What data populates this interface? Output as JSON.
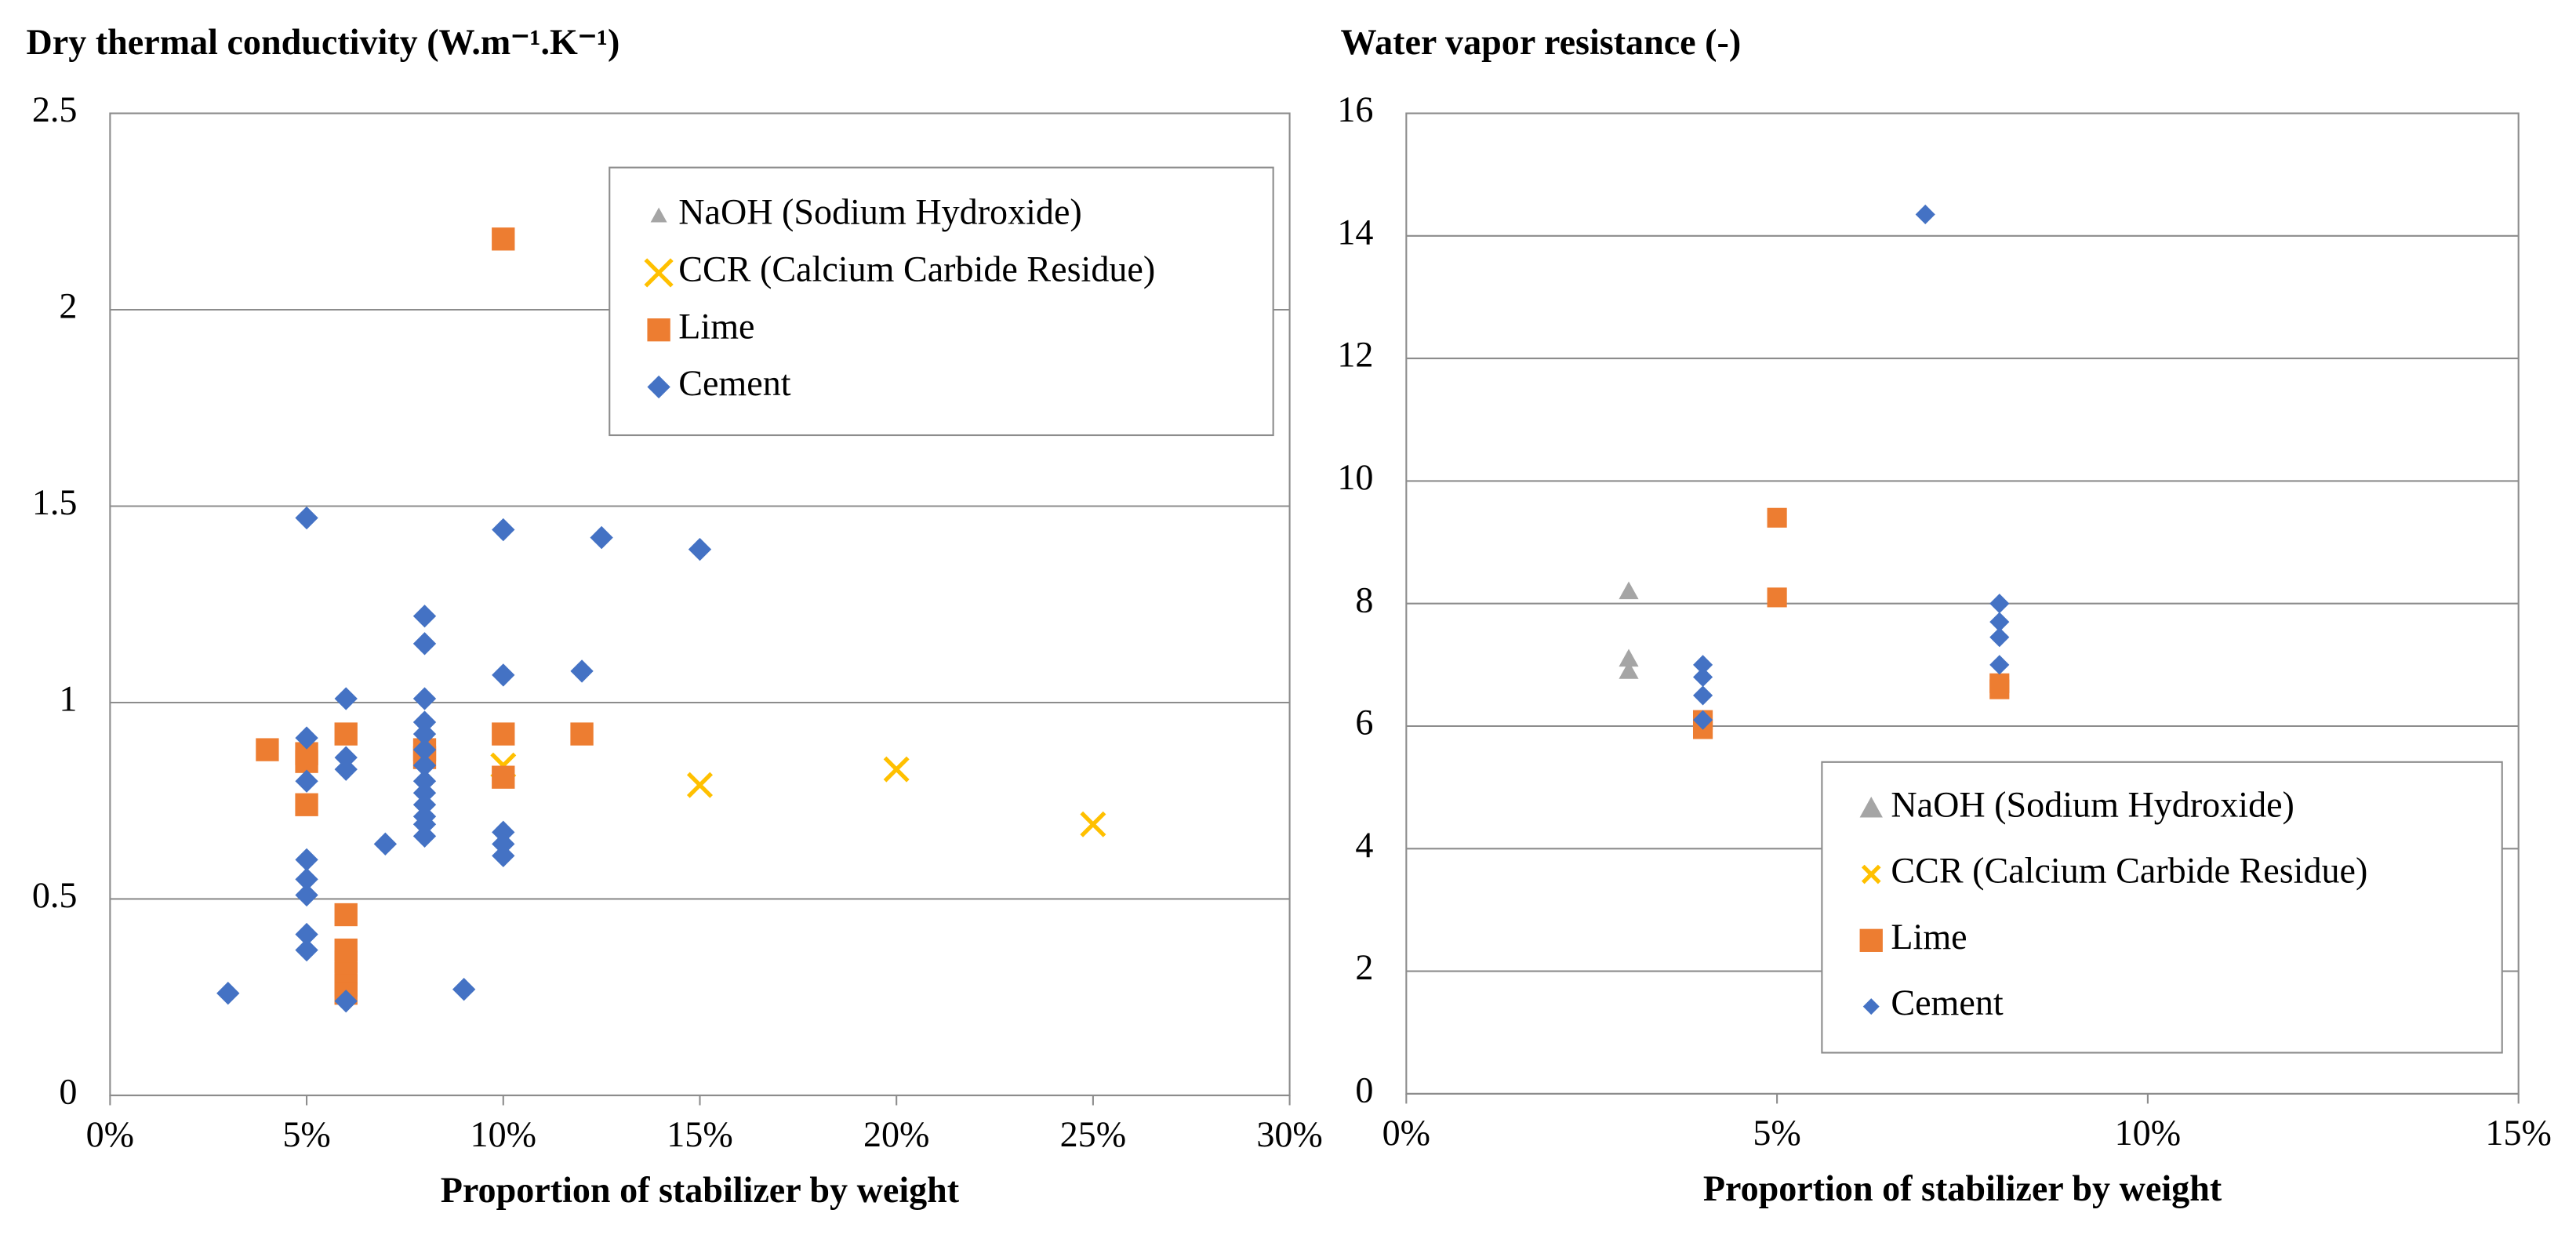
{
  "chart_data": [
    {
      "type": "scatter",
      "title": "Dry thermal conductivity (W.m⁻¹.K⁻¹)",
      "x_label": "Proportion of stabilizer by weight",
      "xlim": [
        0,
        30
      ],
      "xticks": [
        {
          "value": 0,
          "label": "0%"
        },
        {
          "value": 5,
          "label": "5%"
        },
        {
          "value": 10,
          "label": "10%"
        },
        {
          "value": 15,
          "label": "15%"
        },
        {
          "value": 20,
          "label": "20%"
        },
        {
          "value": 25,
          "label": "25%"
        },
        {
          "value": 30,
          "label": "30%"
        }
      ],
      "ylim": [
        0,
        2.5
      ],
      "yticks": [
        0,
        0.5,
        1,
        1.5,
        2,
        2.5
      ],
      "grid": true,
      "legend": "upper right",
      "series": [
        {
          "name": "NaOH (Sodium Hydroxide)",
          "color": "#a5a5a5",
          "marker": "triangle",
          "x": [],
          "y": []
        },
        {
          "name": "CCR (Calcium Carbide Residue)",
          "color": "#ffc000",
          "marker": "x",
          "x": [
            10,
            15,
            20,
            25
          ],
          "y": [
            0.84,
            0.79,
            0.83,
            0.69
          ]
        },
        {
          "name": "Lime",
          "color": "#ed7d31",
          "marker": "square",
          "x": [
            4,
            5,
            5,
            5,
            6,
            6,
            6,
            6,
            6,
            6,
            6,
            8,
            8,
            10,
            10,
            10,
            12
          ],
          "y": [
            0.88,
            0.87,
            0.85,
            0.74,
            0.92,
            0.46,
            0.37,
            0.34,
            0.31,
            0.28,
            0.26,
            0.88,
            0.86,
            2.18,
            0.92,
            0.81,
            0.92
          ]
        },
        {
          "name": "Cement",
          "color": "#4472c4",
          "marker": "diamond",
          "x": [
            3,
            5,
            5,
            5,
            5,
            5,
            5,
            5,
            5,
            6,
            6,
            6,
            6,
            7,
            8,
            8,
            8,
            8,
            8,
            8,
            8,
            8,
            8,
            8,
            8,
            8,
            8,
            9,
            10,
            10,
            10,
            10,
            10,
            12,
            12.5,
            15
          ],
          "y": [
            0.26,
            1.47,
            0.91,
            0.8,
            0.6,
            0.55,
            0.51,
            0.41,
            0.37,
            1.01,
            0.86,
            0.83,
            0.24,
            0.64,
            1.22,
            1.15,
            1.01,
            0.95,
            0.92,
            0.88,
            0.84,
            0.8,
            0.77,
            0.74,
            0.71,
            0.69,
            0.66,
            0.27,
            1.44,
            1.07,
            0.67,
            0.64,
            0.61,
            1.08,
            1.42,
            1.39
          ]
        }
      ]
    },
    {
      "type": "scatter",
      "title": "Water vapor resistance (-)",
      "x_label": "Proportion of stabilizer by weight",
      "xlim": [
        0,
        15
      ],
      "xticks": [
        {
          "value": 0,
          "label": "0%"
        },
        {
          "value": 5,
          "label": "5%"
        },
        {
          "value": 10,
          "label": "10%"
        },
        {
          "value": 15,
          "label": "15%"
        }
      ],
      "ylim": [
        0,
        16
      ],
      "yticks": [
        0,
        2,
        4,
        6,
        8,
        10,
        12,
        14,
        16
      ],
      "grid": true,
      "legend": "lower right",
      "series": [
        {
          "name": "NaOH (Sodium Hydroxide)",
          "color": "#a5a5a5",
          "marker": "triangle",
          "x": [
            3,
            3,
            3
          ],
          "y": [
            8.2,
            7.1,
            6.9
          ]
        },
        {
          "name": "CCR (Calcium Carbide Residue)",
          "color": "#ffc000",
          "marker": "x",
          "x": [],
          "y": []
        },
        {
          "name": "Lime",
          "color": "#ed7d31",
          "marker": "square",
          "x": [
            4,
            4,
            5,
            5,
            8,
            8
          ],
          "y": [
            6.1,
            5.95,
            9.4,
            8.1,
            6.7,
            6.6
          ]
        },
        {
          "name": "Cement",
          "color": "#4472c4",
          "marker": "diamond",
          "x": [
            4,
            4,
            4,
            4,
            7,
            8,
            8,
            8,
            8
          ],
          "y": [
            7,
            6.8,
            6.5,
            6.1,
            14.35,
            8,
            7.7,
            7.45,
            7
          ]
        }
      ]
    }
  ]
}
